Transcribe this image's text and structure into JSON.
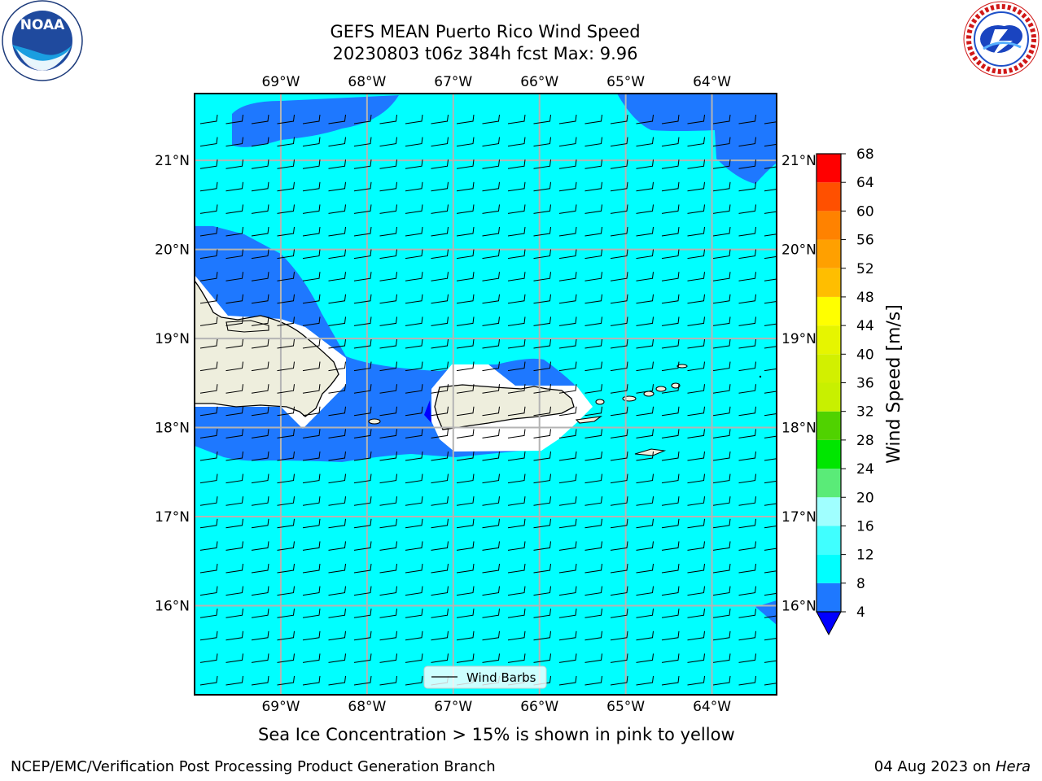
{
  "title_line1": "GEFS MEAN Puerto Rico Wind Speed",
  "title_line2": "20230803 t06z 384h fcst   Max: 9.96",
  "logos": {
    "left": {
      "name": "NOAA",
      "text": "NOAA",
      "ring_text": "NATIONAL OCEANIC AND ATMOSPHERIC ADMINISTRATION · U.S. DEPARTMENT OF COMMERCE"
    },
    "right": {
      "name": "National Weather Service",
      "ring_text": "NATIONAL WEATHER SERVICE"
    }
  },
  "map": {
    "lon_ticks": [
      "69°W",
      "68°W",
      "67°W",
      "66°W",
      "65°W",
      "64°W"
    ],
    "lat_ticks": [
      "21°N",
      "20°N",
      "19°N",
      "18°N",
      "17°N",
      "16°N"
    ],
    "lon_range": [
      -70.0,
      -63.25
    ],
    "lat_range": [
      15.0,
      21.75
    ],
    "legend_label": "Wind Barbs",
    "barb_direction": "easterly",
    "colors": {
      "land": "#eeeedd",
      "ocean_8_12": "#00ffff",
      "ocean_4_8": "#1e78ff",
      "below_4": "#0000ff",
      "grid": "#b4b4b4"
    }
  },
  "colorbar": {
    "label": "Wind Speed [m/s]",
    "ticks": [
      "68",
      "64",
      "60",
      "56",
      "52",
      "48",
      "44",
      "40",
      "36",
      "32",
      "28",
      "24",
      "20",
      "16",
      "12",
      "8",
      "4"
    ],
    "bins_low_to_high": [
      {
        "from": 4,
        "to": 8,
        "color": "#1e78ff"
      },
      {
        "from": 8,
        "to": 12,
        "color": "#00ffff"
      },
      {
        "from": 12,
        "to": 16,
        "color": "#40ffff"
      },
      {
        "from": 16,
        "to": 20,
        "color": "#a0ffff"
      },
      {
        "from": 20,
        "to": 24,
        "color": "#5aeb78"
      },
      {
        "from": 24,
        "to": 28,
        "color": "#00e600"
      },
      {
        "from": 28,
        "to": 32,
        "color": "#50d200"
      },
      {
        "from": 32,
        "to": 36,
        "color": "#c8f000"
      },
      {
        "from": 36,
        "to": 40,
        "color": "#d2f000"
      },
      {
        "from": 40,
        "to": 44,
        "color": "#e6f500"
      },
      {
        "from": 44,
        "to": 48,
        "color": "#ffff00"
      },
      {
        "from": 48,
        "to": 52,
        "color": "#ffbe00"
      },
      {
        "from": 52,
        "to": 56,
        "color": "#ffa000"
      },
      {
        "from": 56,
        "to": 60,
        "color": "#ff8200"
      },
      {
        "from": 60,
        "to": 64,
        "color": "#ff5000"
      },
      {
        "from": 64,
        "to": 68,
        "color": "#ff0000"
      }
    ],
    "extend_below_color": "#0000ff"
  },
  "subtitle": "Sea Ice Concentration > 15% is shown in pink to yellow",
  "footer_left": "NCEP/EMC/Verification Post Processing Product Generation Branch",
  "footer_date": "04 Aug 2023 on ",
  "footer_host": "Hera"
}
